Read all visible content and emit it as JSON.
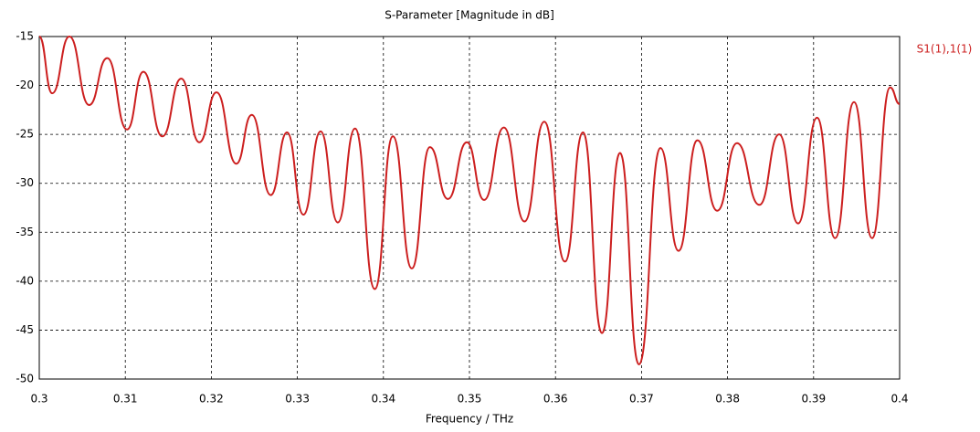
{
  "chart_data": {
    "type": "line",
    "title": "S-Parameter [Magnitude in dB]",
    "x_label": "Frequency / THz",
    "x": [
      0.3,
      0.3015,
      0.3035,
      0.3058,
      0.3079,
      0.3102,
      0.3121,
      0.3143,
      0.3165,
      0.3186,
      0.3206,
      0.3229,
      0.3247,
      0.3269,
      0.3288,
      0.3307,
      0.3327,
      0.3347,
      0.3367,
      0.339,
      0.3411,
      0.3433,
      0.3454,
      0.3475,
      0.3497,
      0.3517,
      0.354,
      0.3564,
      0.3587,
      0.3611,
      0.3632,
      0.3654,
      0.3675,
      0.3697,
      0.3722,
      0.3743,
      0.3765,
      0.3788,
      0.3811,
      0.3837,
      0.386,
      0.3882,
      0.3904,
      0.3925,
      0.3947,
      0.3968,
      0.3989,
      0.4
    ],
    "series": [
      {
        "name": "S1(1),1(1)",
        "color": "#cc1f1f",
        "values": [
          -15,
          -20.8,
          -15,
          -22,
          -17.2,
          -24.5,
          -18.6,
          -25.2,
          -19.3,
          -25.8,
          -20.7,
          -28,
          -23,
          -31.2,
          -24.8,
          -33.2,
          -24.7,
          -34,
          -24.4,
          -40.8,
          -25.2,
          -38.7,
          -26.3,
          -31.6,
          -25.8,
          -31.7,
          -24.3,
          -33.9,
          -23.7,
          -38,
          -24.8,
          -45.3,
          -26.9,
          -48.5,
          -26.4,
          -36.9,
          -25.6,
          -32.8,
          -25.9,
          -32.2,
          -25,
          -34.1,
          -23.3,
          -35.6,
          -21.7,
          -35.6,
          -20.2,
          -21.9
        ]
      }
    ],
    "xlim": [
      0.3,
      0.4
    ],
    "xticks": [
      0.3,
      0.31,
      0.32,
      0.33,
      0.34,
      0.35,
      0.36,
      0.37,
      0.38,
      0.39,
      0.4
    ],
    "ylim": [
      -50,
      -15
    ],
    "yticks": [
      -50,
      -45,
      -40,
      -35,
      -30,
      -25,
      -20,
      -15
    ],
    "grid": true
  }
}
